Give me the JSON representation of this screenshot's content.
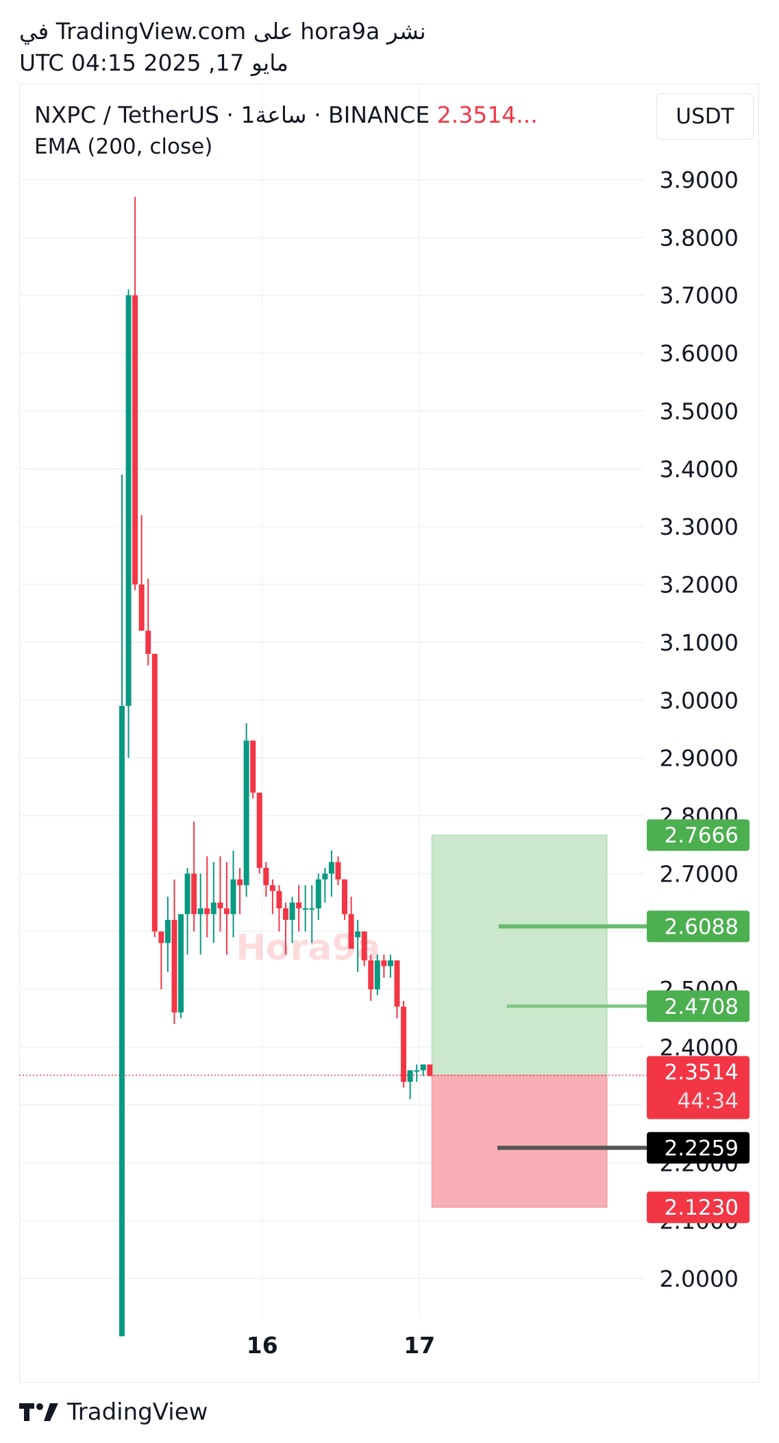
{
  "header": {
    "line1": "نشر hora9a على TradingView.com في",
    "line2": "مايو 17, 2025 04:15 UTC"
  },
  "legend": {
    "symbol": "NXPC / TetherUS · 1ساعة · BINANCE",
    "last_price": "2.3514...",
    "indicator": "EMA (200, close)"
  },
  "currency_button": "USDT",
  "watermark": "Hora9a",
  "footer": {
    "brand": "TradingView"
  },
  "colors": {
    "up": "#089981",
    "down": "#f23645",
    "target": "#4caf50",
    "zone_profit": "#c8e6c9",
    "zone_loss": "#f8aab1",
    "grid": "#f0f3fa"
  },
  "chart_data": {
    "type": "candlestick",
    "title": "NXPC / TetherUS · 1ساعة · BINANCE",
    "xlabel": "",
    "ylabel": "USDT",
    "ylim": [
      1.935,
      3.965
    ],
    "y_ticks": [
      "3.9000",
      "3.8000",
      "3.7000",
      "3.6000",
      "3.5000",
      "3.4000",
      "3.3000",
      "3.2000",
      "3.1000",
      "3.0000",
      "2.9000",
      "2.8000",
      "2.7000",
      "2.5000",
      "2.4000",
      "2.2000",
      "2.1000",
      "2.0000"
    ],
    "x_ticks": [
      {
        "label": "16",
        "index": 21
      },
      {
        "label": "17",
        "index": 45
      }
    ],
    "candles": [
      {
        "o": 1.9,
        "h": 3.39,
        "l": 1.9,
        "c": 2.99
      },
      {
        "o": 2.99,
        "h": 3.71,
        "l": 2.9,
        "c": 3.7
      },
      {
        "o": 3.7,
        "h": 3.87,
        "l": 3.19,
        "c": 3.2
      },
      {
        "o": 3.2,
        "h": 3.32,
        "l": 3.12,
        "c": 3.12
      },
      {
        "o": 3.12,
        "h": 3.21,
        "l": 3.06,
        "c": 3.08
      },
      {
        "o": 3.08,
        "h": 3.08,
        "l": 2.59,
        "c": 2.6
      },
      {
        "o": 2.6,
        "h": 2.6,
        "l": 2.5,
        "c": 2.58
      },
      {
        "o": 2.58,
        "h": 2.66,
        "l": 2.53,
        "c": 2.62
      },
      {
        "o": 2.62,
        "h": 2.69,
        "l": 2.44,
        "c": 2.46
      },
      {
        "o": 2.46,
        "h": 2.63,
        "l": 2.45,
        "c": 2.63
      },
      {
        "o": 2.63,
        "h": 2.71,
        "l": 2.56,
        "c": 2.7
      },
      {
        "o": 2.7,
        "h": 2.79,
        "l": 2.6,
        "c": 2.63
      },
      {
        "o": 2.63,
        "h": 2.7,
        "l": 2.56,
        "c": 2.64
      },
      {
        "o": 2.64,
        "h": 2.73,
        "l": 2.59,
        "c": 2.63
      },
      {
        "o": 2.63,
        "h": 2.72,
        "l": 2.58,
        "c": 2.65
      },
      {
        "o": 2.65,
        "h": 2.73,
        "l": 2.6,
        "c": 2.64
      },
      {
        "o": 2.64,
        "h": 2.72,
        "l": 2.56,
        "c": 2.63
      },
      {
        "o": 2.63,
        "h": 2.74,
        "l": 2.59,
        "c": 2.69
      },
      {
        "o": 2.69,
        "h": 2.71,
        "l": 2.63,
        "c": 2.68
      },
      {
        "o": 2.68,
        "h": 2.96,
        "l": 2.66,
        "c": 2.93
      },
      {
        "o": 2.93,
        "h": 2.93,
        "l": 2.83,
        "c": 2.84
      },
      {
        "o": 2.84,
        "h": 2.84,
        "l": 2.7,
        "c": 2.71
      },
      {
        "o": 2.71,
        "h": 2.72,
        "l": 2.66,
        "c": 2.68
      },
      {
        "o": 2.68,
        "h": 2.69,
        "l": 2.63,
        "c": 2.67
      },
      {
        "o": 2.67,
        "h": 2.68,
        "l": 2.6,
        "c": 2.64
      },
      {
        "o": 2.64,
        "h": 2.65,
        "l": 2.56,
        "c": 2.62
      },
      {
        "o": 2.62,
        "h": 2.66,
        "l": 2.58,
        "c": 2.65
      },
      {
        "o": 2.65,
        "h": 2.68,
        "l": 2.6,
        "c": 2.64
      },
      {
        "o": 2.64,
        "h": 2.68,
        "l": 2.6,
        "c": 2.64
      },
      {
        "o": 2.64,
        "h": 2.68,
        "l": 2.58,
        "c": 2.64
      },
      {
        "o": 2.64,
        "h": 2.7,
        "l": 2.62,
        "c": 2.69
      },
      {
        "o": 2.69,
        "h": 2.71,
        "l": 2.65,
        "c": 2.7
      },
      {
        "o": 2.7,
        "h": 2.74,
        "l": 2.66,
        "c": 2.72
      },
      {
        "o": 2.72,
        "h": 2.73,
        "l": 2.68,
        "c": 2.69
      },
      {
        "o": 2.69,
        "h": 2.69,
        "l": 2.62,
        "c": 2.63
      },
      {
        "o": 2.63,
        "h": 2.66,
        "l": 2.58,
        "c": 2.57
      },
      {
        "o": 2.59,
        "h": 2.62,
        "l": 2.53,
        "c": 2.6
      },
      {
        "o": 2.6,
        "h": 2.6,
        "l": 2.54,
        "c": 2.55
      },
      {
        "o": 2.55,
        "h": 2.56,
        "l": 2.48,
        "c": 2.5
      },
      {
        "o": 2.5,
        "h": 2.56,
        "l": 2.49,
        "c": 2.55
      },
      {
        "o": 2.55,
        "h": 2.56,
        "l": 2.52,
        "c": 2.54
      },
      {
        "o": 2.54,
        "h": 2.56,
        "l": 2.52,
        "c": 2.55
      },
      {
        "o": 2.55,
        "h": 2.55,
        "l": 2.45,
        "c": 2.47
      },
      {
        "o": 2.47,
        "h": 2.48,
        "l": 2.33,
        "c": 2.34
      },
      {
        "o": 2.34,
        "h": 2.35,
        "l": 2.31,
        "c": 2.36
      },
      {
        "o": 2.36,
        "h": 2.37,
        "l": 2.34,
        "c": 2.36
      },
      {
        "o": 2.36,
        "h": 2.37,
        "l": 2.35,
        "c": 2.37
      },
      {
        "o": 2.37,
        "h": 2.37,
        "l": 2.35,
        "c": 2.35
      }
    ],
    "position": {
      "entry": 2.3514,
      "take_profit": 2.7666,
      "stop_loss": 2.123,
      "targets": [
        2.6088,
        2.4708
      ],
      "level": 2.2259,
      "start_index": 47
    },
    "price_labels": [
      {
        "value": 2.7666,
        "text": "2.7666",
        "color": "#4caf50",
        "text_color": "#ffffff"
      },
      {
        "value": 2.6088,
        "text": "2.6088",
        "color": "#4caf50",
        "text_color": "#ffffff"
      },
      {
        "value": 2.4708,
        "text": "2.4708",
        "color": "#4caf50",
        "text_color": "#ffffff"
      },
      {
        "value": 2.3514,
        "text": "2.3514",
        "sub": "44:34",
        "color": "#f23645",
        "text_color": "#ffffff"
      },
      {
        "value": 2.2259,
        "text": "2.2259",
        "color": "#000000",
        "text_color": "#ffffff"
      },
      {
        "value": 2.123,
        "text": "2.1230",
        "color": "#f23645",
        "text_color": "#ffffff"
      }
    ]
  }
}
